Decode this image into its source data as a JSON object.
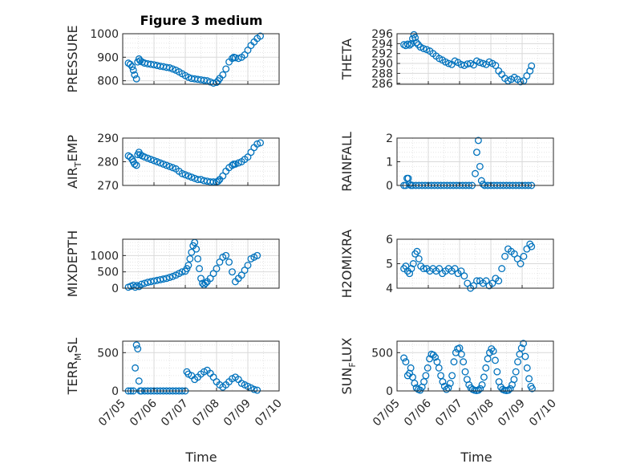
{
  "title": "Figure 3 medium",
  "x_label": "Time",
  "x_ticks": [
    "07/05",
    "07/06",
    "07/07",
    "07/08",
    "07/09",
    "07/10"
  ],
  "marker_color": "#0072BD",
  "chart_data": [
    {
      "type": "scatter",
      "ylabel": "PRESSURE",
      "ylim": [
        785,
        1000
      ],
      "yticks": [
        800,
        900,
        1000
      ],
      "minor": [
        820,
        840,
        860,
        880,
        920,
        940,
        960,
        980
      ],
      "grid": "on",
      "x": [
        0.18,
        0.24,
        0.3,
        0.34,
        0.38,
        0.44,
        0.48,
        0.52,
        0.56,
        0.62,
        0.7,
        0.8,
        0.9,
        1.0,
        1.1,
        1.2,
        1.3,
        1.4,
        1.5,
        1.6,
        1.7,
        1.8,
        1.9,
        2.0,
        2.1,
        2.2,
        2.3,
        2.4,
        2.5,
        2.6,
        2.7,
        2.8,
        2.9,
        3.0,
        3.05,
        3.1,
        3.2,
        3.3,
        3.4,
        3.5,
        3.55,
        3.6,
        3.7,
        3.8,
        3.9,
        4.0,
        4.1,
        4.2,
        4.3,
        4.4
      ],
      "y": [
        875,
        870,
        860,
        845,
        825,
        808,
        880,
        893,
        885,
        880,
        875,
        872,
        870,
        868,
        865,
        862,
        860,
        857,
        855,
        850,
        845,
        838,
        830,
        822,
        815,
        810,
        808,
        806,
        804,
        802,
        800,
        795,
        790,
        793,
        800,
        810,
        825,
        850,
        880,
        895,
        900,
        898,
        895,
        900,
        910,
        930,
        950,
        965,
        980,
        990
      ]
    },
    {
      "type": "scatter",
      "ylabel": "THETA",
      "ylim": [
        285.8,
        296
      ],
      "yticks": [
        286,
        288,
        290,
        292,
        294,
        296
      ],
      "minor": [
        287,
        289,
        291,
        293,
        295
      ],
      "grid": "on",
      "x": [
        0.22,
        0.28,
        0.34,
        0.4,
        0.46,
        0.5,
        0.54,
        0.58,
        0.62,
        0.68,
        0.75,
        0.85,
        0.95,
        1.05,
        1.15,
        1.25,
        1.35,
        1.45,
        1.55,
        1.65,
        1.75,
        1.85,
        1.95,
        2.05,
        2.15,
        2.25,
        2.35,
        2.45,
        2.55,
        2.65,
        2.75,
        2.85,
        2.95,
        3.05,
        3.15,
        3.25,
        3.35,
        3.45,
        3.55,
        3.65,
        3.75,
        3.85,
        3.95,
        4.05,
        4.15,
        4.25,
        4.3
      ],
      "y": [
        293.8,
        293.6,
        293.9,
        293.7,
        294.0,
        295.0,
        295.8,
        295.2,
        294.2,
        293.8,
        293.3,
        293.0,
        292.8,
        292.5,
        292.0,
        291.5,
        291.0,
        290.7,
        290.3,
        290.0,
        289.8,
        290.5,
        290.2,
        289.8,
        289.6,
        289.9,
        290.0,
        289.7,
        290.5,
        290.2,
        290.0,
        289.8,
        290.3,
        290.0,
        289.6,
        288.5,
        287.8,
        287.0,
        286.5,
        286.8,
        287.2,
        286.8,
        286.3,
        286.5,
        287.5,
        288.5,
        289.5
      ]
    },
    {
      "type": "scatter",
      "ylabel": "AIR_TEMP",
      "ylim": [
        270,
        290
      ],
      "yticks": [
        270,
        280,
        290
      ],
      "minor": [
        272,
        274,
        276,
        278,
        282,
        284,
        286,
        288
      ],
      "grid": "on",
      "x": [
        0.18,
        0.24,
        0.3,
        0.34,
        0.38,
        0.44,
        0.48,
        0.52,
        0.56,
        0.62,
        0.7,
        0.8,
        0.9,
        1.0,
        1.1,
        1.2,
        1.3,
        1.4,
        1.5,
        1.6,
        1.7,
        1.8,
        1.9,
        2.0,
        2.1,
        2.2,
        2.3,
        2.4,
        2.5,
        2.6,
        2.7,
        2.8,
        2.9,
        3.0,
        3.05,
        3.1,
        3.2,
        3.3,
        3.4,
        3.5,
        3.55,
        3.6,
        3.7,
        3.8,
        3.9,
        4.0,
        4.1,
        4.2,
        4.3,
        4.4
      ],
      "y": [
        282.5,
        282,
        281,
        280,
        279,
        278.5,
        283,
        284,
        283,
        282.5,
        282,
        281.5,
        281,
        280.5,
        280,
        279.5,
        279,
        278.5,
        278,
        277.5,
        277,
        276,
        275,
        274.5,
        274,
        273.5,
        273,
        272.5,
        272.5,
        272,
        271.8,
        271.5,
        271.5,
        271.5,
        271.8,
        272.5,
        274,
        276,
        277.5,
        278.5,
        279,
        279,
        279.5,
        280,
        281,
        282,
        284,
        286,
        287.5,
        288
      ]
    },
    {
      "type": "scatter",
      "ylabel": "RAINFALL",
      "ylim": [
        0,
        2
      ],
      "yticks": [
        0,
        1,
        2
      ],
      "minor": [
        0.2,
        0.4,
        0.6,
        0.8,
        1.2,
        1.4,
        1.6,
        1.8
      ],
      "grid": "on",
      "x": [
        0.22,
        0.28,
        0.32,
        0.36,
        0.4,
        0.44,
        0.5,
        0.6,
        0.7,
        0.8,
        0.9,
        1.0,
        1.1,
        1.2,
        1.3,
        1.4,
        1.5,
        1.6,
        1.7,
        1.8,
        1.9,
        2.0,
        2.1,
        2.2,
        2.3,
        2.4,
        2.5,
        2.55,
        2.6,
        2.65,
        2.7,
        2.75,
        2.8,
        2.9,
        3.0,
        3.1,
        3.2,
        3.3,
        3.4,
        3.5,
        3.6,
        3.7,
        3.8,
        3.9,
        4.0,
        4.1,
        4.2,
        4.3
      ],
      "y": [
        0,
        0,
        0.3,
        0.3,
        0.05,
        0,
        0,
        0,
        0,
        0,
        0,
        0,
        0,
        0,
        0,
        0,
        0,
        0,
        0,
        0,
        0,
        0,
        0,
        0,
        0,
        0,
        0.5,
        1.4,
        1.9,
        0.8,
        0.2,
        0.05,
        0,
        0,
        0,
        0,
        0,
        0,
        0,
        0,
        0,
        0,
        0,
        0,
        0,
        0,
        0,
        0
      ]
    },
    {
      "type": "scatter",
      "ylabel": "MIXDEPTH",
      "ylim": [
        0,
        1500
      ],
      "yticks": [
        0,
        500,
        1000
      ],
      "minor": [
        100,
        200,
        300,
        400,
        600,
        700,
        800,
        900,
        1100,
        1200,
        1300,
        1400
      ],
      "grid": "on",
      "x": [
        0.18,
        0.26,
        0.34,
        0.4,
        0.46,
        0.52,
        0.6,
        0.7,
        0.8,
        0.9,
        1.0,
        1.1,
        1.2,
        1.3,
        1.4,
        1.5,
        1.6,
        1.7,
        1.8,
        1.9,
        2.0,
        2.05,
        2.1,
        2.15,
        2.2,
        2.25,
        2.3,
        2.35,
        2.4,
        2.45,
        2.5,
        2.55,
        2.6,
        2.65,
        2.7,
        2.8,
        2.9,
        3.0,
        3.1,
        3.2,
        3.3,
        3.4,
        3.5,
        3.6,
        3.7,
        3.8,
        3.9,
        4.0,
        4.1,
        4.2,
        4.3
      ],
      "y": [
        30,
        60,
        90,
        30,
        80,
        50,
        120,
        150,
        180,
        200,
        220,
        240,
        260,
        280,
        300,
        330,
        360,
        400,
        450,
        500,
        520,
        600,
        700,
        900,
        1100,
        1300,
        1400,
        1200,
        900,
        600,
        300,
        150,
        100,
        150,
        200,
        300,
        450,
        600,
        800,
        950,
        1000,
        800,
        500,
        200,
        300,
        400,
        550,
        700,
        900,
        950,
        1000
      ]
    },
    {
      "type": "scatter",
      "ylabel": "H2OMIXRA",
      "ylim": [
        4,
        6
      ],
      "yticks": [
        4,
        5,
        6
      ],
      "minor": [
        4.2,
        4.4,
        4.6,
        4.8,
        5.2,
        5.4,
        5.6,
        5.8
      ],
      "grid": "on",
      "x": [
        0.22,
        0.28,
        0.34,
        0.4,
        0.46,
        0.52,
        0.58,
        0.64,
        0.7,
        0.76,
        0.85,
        0.95,
        1.05,
        1.15,
        1.25,
        1.35,
        1.45,
        1.55,
        1.65,
        1.75,
        1.85,
        1.95,
        2.05,
        2.15,
        2.25,
        2.35,
        2.45,
        2.55,
        2.65,
        2.75,
        2.85,
        2.95,
        3.05,
        3.15,
        3.25,
        3.35,
        3.45,
        3.55,
        3.65,
        3.75,
        3.85,
        3.95,
        4.05,
        4.15,
        4.25,
        4.3
      ],
      "y": [
        4.8,
        4.9,
        4.7,
        4.6,
        4.8,
        5.0,
        5.4,
        5.5,
        5.2,
        4.9,
        4.8,
        4.8,
        4.7,
        4.8,
        4.7,
        4.8,
        4.6,
        4.7,
        4.8,
        4.7,
        4.8,
        4.6,
        4.7,
        4.5,
        4.2,
        4.0,
        4.1,
        4.3,
        4.3,
        4.2,
        4.3,
        4.1,
        4.2,
        4.4,
        4.3,
        4.8,
        5.3,
        5.6,
        5.5,
        5.4,
        5.2,
        5.0,
        5.3,
        5.6,
        5.8,
        5.7
      ]
    },
    {
      "type": "scatter",
      "ylabel": "TERR_MSL",
      "ylim": [
        0,
        650
      ],
      "yticks": [
        0,
        500
      ],
      "minor": [
        100,
        200,
        300,
        400,
        600
      ],
      "grid": "on",
      "x": [
        0.18,
        0.26,
        0.34,
        0.4,
        0.44,
        0.48,
        0.52,
        0.56,
        0.6,
        0.7,
        0.8,
        0.9,
        1.0,
        1.1,
        1.2,
        1.3,
        1.4,
        1.5,
        1.6,
        1.7,
        1.8,
        1.9,
        2.0,
        2.05,
        2.1,
        2.2,
        2.3,
        2.4,
        2.5,
        2.6,
        2.7,
        2.8,
        2.9,
        3.0,
        3.1,
        3.2,
        3.3,
        3.4,
        3.5,
        3.6,
        3.7,
        3.8,
        3.9,
        4.0,
        4.1,
        4.2,
        4.3
      ],
      "y": [
        0,
        0,
        0,
        300,
        600,
        550,
        130,
        0,
        0,
        0,
        0,
        0,
        0,
        0,
        0,
        0,
        0,
        0,
        0,
        0,
        0,
        0,
        0,
        250,
        220,
        200,
        150,
        180,
        220,
        250,
        270,
        230,
        180,
        120,
        80,
        50,
        80,
        120,
        160,
        180,
        150,
        100,
        80,
        60,
        40,
        20,
        10
      ]
    },
    {
      "type": "scatter",
      "ylabel": "SUN_FLUX",
      "ylim": [
        0,
        650
      ],
      "yticks": [
        0,
        500
      ],
      "minor": [
        100,
        200,
        300,
        400,
        600
      ],
      "grid": "on",
      "x": [
        0.22,
        0.28,
        0.34,
        0.4,
        0.44,
        0.5,
        0.56,
        0.62,
        0.68,
        0.74,
        0.8,
        0.86,
        0.92,
        0.98,
        1.04,
        1.1,
        1.16,
        1.22,
        1.28,
        1.34,
        1.4,
        1.46,
        1.52,
        1.58,
        1.64,
        1.7,
        1.76,
        1.82,
        1.88,
        1.94,
        2.0,
        2.06,
        2.12,
        2.18,
        2.24,
        2.3,
        2.36,
        2.42,
        2.48,
        2.54,
        2.6,
        2.66,
        2.72,
        2.78,
        2.84,
        2.9,
        2.96,
        3.02,
        3.08,
        3.14,
        3.2,
        3.26,
        3.32,
        3.38,
        3.44,
        3.5,
        3.56,
        3.62,
        3.68,
        3.74,
        3.8,
        3.86,
        3.92,
        3.98,
        4.04,
        4.1,
        4.16,
        4.22,
        4.28,
        4.32
      ],
      "y": [
        430,
        380,
        200,
        230,
        300,
        180,
        100,
        40,
        20,
        10,
        50,
        120,
        200,
        300,
        420,
        480,
        470,
        440,
        380,
        300,
        200,
        120,
        60,
        20,
        40,
        100,
        200,
        380,
        500,
        550,
        560,
        480,
        380,
        250,
        150,
        80,
        40,
        20,
        10,
        5,
        10,
        30,
        80,
        180,
        300,
        420,
        500,
        550,
        520,
        400,
        250,
        120,
        50,
        20,
        10,
        5,
        10,
        30,
        80,
        150,
        250,
        380,
        480,
        560,
        620,
        450,
        300,
        160,
        60,
        30
      ]
    }
  ]
}
